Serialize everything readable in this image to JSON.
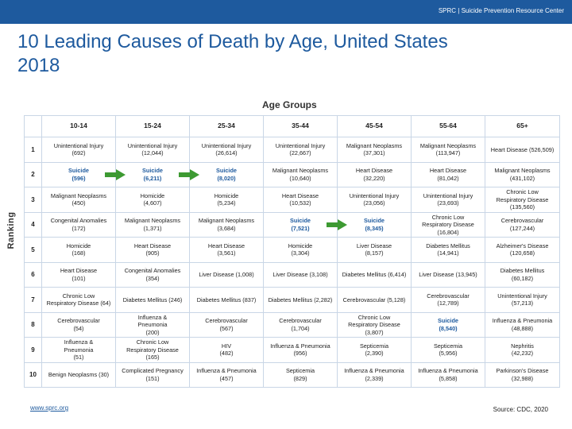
{
  "header": {
    "org_label": "SPRC  |  Suicide Prevention Resource Center"
  },
  "title": "10 Leading Causes of Death by Age, United States 2018",
  "age_groups_label": "Age Groups",
  "ranking_label": "Ranking",
  "columns": [
    "10-14",
    "15-24",
    "25-34",
    "35-44",
    "45-54",
    "55-64",
    "65+"
  ],
  "rows": [
    {
      "rank": "1",
      "cells": [
        "Unintentional Injury\n(692)",
        "Unintentional Injury\n(12,044)",
        "Unintentional Injury\n(26,614)",
        "Unintentional Injury\n(22,667)",
        "Malignant Neoplasms\n(37,301)",
        "Malignant Neoplasms\n(113,947)",
        "Heart Disease (526,509)"
      ]
    },
    {
      "rank": "2",
      "cells": [
        "Suicide\n(596)",
        "Suicide\n(6,211)",
        "Suicide\n(8,020)",
        "Malignant Neoplasms\n(10,640)",
        "Heart Disease\n(32,220)",
        "Heart Disease\n(81,042)",
        "Malignant Neoplasms\n(431,102)"
      ]
    },
    {
      "rank": "3",
      "cells": [
        "Malignant Neoplasms\n(450)",
        "Homicide\n(4,607)",
        "Homicide\n(5,234)",
        "Heart Disease\n(10,532)",
        "Unintentional Injury\n(23,056)",
        "Unintentional Injury\n(23,693)",
        "Chronic Low\nRespiratory Disease\n(135,560)"
      ]
    },
    {
      "rank": "4",
      "cells": [
        "Congenital Anomalies\n(172)",
        "Malignant Neoplasms\n(1,371)",
        "Malignant Neoplasms\n(3,684)",
        "Suicide\n(7,521)",
        "Suicide\n(8,345)",
        "Chronic Low\nRespiratory Disease\n(16,804)",
        "Cerebrovascular\n(127,244)"
      ]
    },
    {
      "rank": "5",
      "cells": [
        "Homicide\n(168)",
        "Heart Disease\n(905)",
        "Heart Disease\n(3,561)",
        "Homicide\n(3,304)",
        "Liver Disease\n(8,157)",
        "Diabetes Mellitus\n(14,941)",
        "Alzheimer's Disease\n(120,658)"
      ]
    },
    {
      "rank": "6",
      "cells": [
        "Heart Disease\n(101)",
        "Congenital Anomalies\n(354)",
        "Liver Disease (1,008)",
        "Liver Disease (3,108)",
        "Diabetes Mellitus (6,414)",
        "Liver Disease (13,945)",
        "Diabetes Mellitus\n(60,182)"
      ]
    },
    {
      "rank": "7",
      "cells": [
        "Chronic Low\nRespiratory Disease (64)",
        "Diabetes Mellitus (246)",
        "Diabetes Mellitus (837)",
        "Diabetes Mellitus (2,282)",
        "Cerebrovascular (5,128)",
        "Cerebrovascular\n(12,789)",
        "Unintentional Injury\n(57,213)"
      ]
    },
    {
      "rank": "8",
      "cells": [
        "Cerebrovascular\n(54)",
        "Influenza &\nPneumonia\n(200)",
        "Cerebrovascular\n(567)",
        "Cerebrovascular\n(1,704)",
        "Chronic Low\nRespiratory Disease\n(3,807)",
        "Suicide\n(8,540)",
        "Influenza & Pneumonia\n(48,888)"
      ]
    },
    {
      "rank": "9",
      "cells": [
        "Influenza &\nPneumonia\n(51)",
        "Chronic Low\nRespiratory Disease\n(165)",
        "HIV\n(482)",
        "Influenza & Pneumonia\n(956)",
        "Septicemia\n(2,390)",
        "Septicemia\n(5,956)",
        "Nephritis\n(42,232)"
      ]
    },
    {
      "rank": "10",
      "cells": [
        "Benign Neoplasms (30)",
        "Complicated Pregnancy\n(151)",
        "Influenza & Pneumonia\n(457)",
        "Septicemia\n(829)",
        "Influenza & Pneumonia\n(2,339)",
        "Influenza & Pneumonia\n(5,858)",
        "Parkinson's Disease\n(32,988)"
      ]
    }
  ],
  "footer": {
    "link": "www.sprc.org",
    "source": "Source: CDC, 2020"
  },
  "colors": {
    "brand_blue": "#1e5a9e",
    "arrow_green": "#3d9a32",
    "grid_line": "#c9d6e6"
  }
}
